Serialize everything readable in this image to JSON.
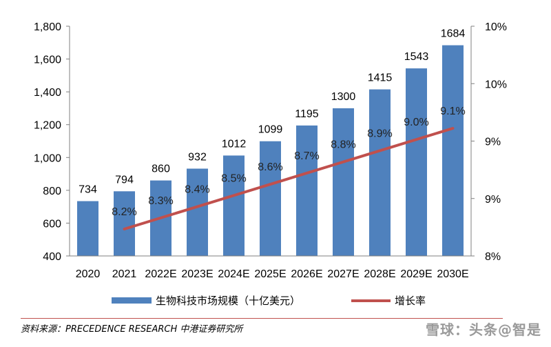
{
  "chart_data": {
    "type": "bar",
    "categories": [
      "2020",
      "2021",
      "2022E",
      "2023E",
      "2024E",
      "2025E",
      "2026E",
      "2027E",
      "2028E",
      "2029E",
      "2030E"
    ],
    "series": [
      {
        "name": "生物科技市场规模（十亿美元）",
        "type": "bar",
        "axis": "left",
        "color": "#4f81bd",
        "values": [
          734,
          794,
          860,
          932,
          1012,
          1099,
          1195,
          1300,
          1415,
          1543,
          1684
        ],
        "labels": [
          "734",
          "794",
          "860",
          "932",
          "1012",
          "1099",
          "1195",
          "1300",
          "1415",
          "1543",
          "1684"
        ]
      },
      {
        "name": "增长率",
        "type": "line",
        "axis": "right",
        "color": "#c0504d",
        "values": [
          null,
          8.2,
          8.3,
          8.4,
          8.5,
          8.6,
          8.7,
          8.8,
          8.9,
          9.0,
          9.1
        ],
        "labels": [
          "",
          "8.2%",
          "8.3%",
          "8.4%",
          "8.5%",
          "8.6%",
          "8.7%",
          "8.8%",
          "8.9%",
          "9.0%",
          "9.1%"
        ]
      }
    ],
    "ylim": [
      400,
      1800
    ],
    "y_ticks": [
      "400",
      "600",
      "800",
      "1,000",
      "1,200",
      "1,400",
      "1,600",
      "1,800"
    ],
    "y2_ticks": [
      "8%",
      "9%",
      "9%",
      "10%",
      "10%"
    ],
    "legend": "bottom",
    "grid": false
  },
  "source": "资料来源：PRECEDENCE RESEARCH 中港证券研究所",
  "watermark": "雪球：头条@智是"
}
